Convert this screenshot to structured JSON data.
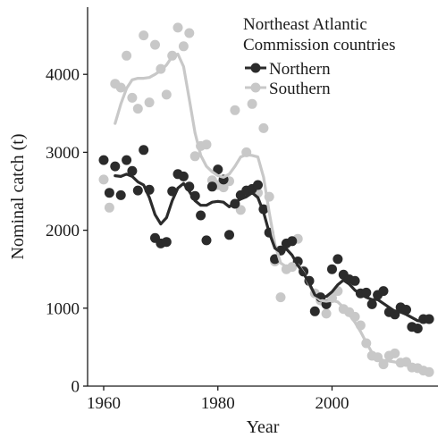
{
  "chart_data": {
    "type": "scatter",
    "xlabel": "Year",
    "ylabel": "Nominal catch (t)",
    "xlim": [
      1958,
      2017
    ],
    "ylim": [
      0,
      4900
    ],
    "x_ticks": [
      1960,
      1980,
      2000
    ],
    "y_ticks": [
      0,
      1000,
      2000,
      3000,
      4000
    ],
    "grid": false,
    "legend": {
      "title_line1": "Northeast Atlantic",
      "title_line2": "Commission countries",
      "placement": "top-right"
    },
    "series": [
      {
        "name": "Northern",
        "color": "#2b2b2b",
        "points": [
          [
            1960,
            2900
          ],
          [
            1961,
            2480
          ],
          [
            1962,
            2820
          ],
          [
            1963,
            2450
          ],
          [
            1964,
            2900
          ],
          [
            1965,
            2760
          ],
          [
            1966,
            2510
          ],
          [
            1967,
            3030
          ],
          [
            1968,
            2520
          ],
          [
            1969,
            1900
          ],
          [
            1970,
            1830
          ],
          [
            1971,
            1850
          ],
          [
            1972,
            2500
          ],
          [
            1973,
            2720
          ],
          [
            1974,
            2690
          ],
          [
            1975,
            2560
          ],
          [
            1976,
            2440
          ],
          [
            1977,
            2190
          ],
          [
            1978,
            1870
          ],
          [
            1979,
            2560
          ],
          [
            1980,
            2780
          ],
          [
            1981,
            2650
          ],
          [
            1982,
            1940
          ],
          [
            1983,
            2340
          ],
          [
            1984,
            2450
          ],
          [
            1985,
            2510
          ],
          [
            1986,
            2530
          ],
          [
            1987,
            2580
          ],
          [
            1988,
            2270
          ],
          [
            1989,
            1970
          ],
          [
            1990,
            1630
          ],
          [
            1991,
            1740
          ],
          [
            1992,
            1830
          ],
          [
            1993,
            1860
          ],
          [
            1994,
            1600
          ],
          [
            1995,
            1470
          ],
          [
            1996,
            1350
          ],
          [
            1997,
            960
          ],
          [
            1998,
            1140
          ],
          [
            1999,
            1050
          ],
          [
            2000,
            1500
          ],
          [
            2001,
            1630
          ],
          [
            2002,
            1430
          ],
          [
            2003,
            1370
          ],
          [
            2004,
            1350
          ],
          [
            2005,
            1190
          ],
          [
            2006,
            1200
          ],
          [
            2007,
            1050
          ],
          [
            2008,
            1170
          ],
          [
            2009,
            1220
          ],
          [
            2010,
            950
          ],
          [
            2011,
            920
          ],
          [
            2012,
            1010
          ],
          [
            2013,
            980
          ],
          [
            2014,
            760
          ],
          [
            2015,
            740
          ],
          [
            2016,
            860
          ],
          [
            2017,
            860
          ]
        ],
        "smooth": [
          [
            1962,
            2700
          ],
          [
            1963,
            2690
          ],
          [
            1964,
            2720
          ],
          [
            1965,
            2690
          ],
          [
            1966,
            2620
          ],
          [
            1967,
            2580
          ],
          [
            1968,
            2420
          ],
          [
            1969,
            2200
          ],
          [
            1970,
            2080
          ],
          [
            1971,
            2160
          ],
          [
            1972,
            2380
          ],
          [
            1973,
            2540
          ],
          [
            1974,
            2600
          ],
          [
            1975,
            2500
          ],
          [
            1976,
            2380
          ],
          [
            1977,
            2320
          ],
          [
            1978,
            2320
          ],
          [
            1979,
            2360
          ],
          [
            1980,
            2370
          ],
          [
            1981,
            2360
          ],
          [
            1982,
            2300
          ],
          [
            1983,
            2360
          ],
          [
            1984,
            2400
          ],
          [
            1985,
            2430
          ],
          [
            1986,
            2480
          ],
          [
            1987,
            2420
          ],
          [
            1988,
            2230
          ],
          [
            1989,
            1970
          ],
          [
            1990,
            1770
          ],
          [
            1991,
            1720
          ],
          [
            1992,
            1760
          ],
          [
            1993,
            1680
          ],
          [
            1994,
            1550
          ],
          [
            1995,
            1450
          ],
          [
            1996,
            1320
          ],
          [
            1997,
            1170
          ],
          [
            1998,
            1130
          ],
          [
            1999,
            1150
          ],
          [
            2000,
            1210
          ],
          [
            2001,
            1300
          ],
          [
            2002,
            1360
          ],
          [
            2003,
            1310
          ],
          [
            2004,
            1230
          ],
          [
            2005,
            1180
          ],
          [
            2006,
            1140
          ],
          [
            2007,
            1110
          ],
          [
            2008,
            1110
          ],
          [
            2009,
            1060
          ],
          [
            2010,
            1010
          ],
          [
            2011,
            960
          ],
          [
            2012,
            950
          ],
          [
            2013,
            920
          ],
          [
            2014,
            880
          ],
          [
            2015,
            840
          ],
          [
            2016,
            830
          ]
        ]
      },
      {
        "name": "Southern",
        "color": "#c8c8c8",
        "points": [
          [
            1960,
            2650
          ],
          [
            1961,
            2290
          ],
          [
            1962,
            3880
          ],
          [
            1963,
            3830
          ],
          [
            1964,
            4240
          ],
          [
            1965,
            3700
          ],
          [
            1966,
            3560
          ],
          [
            1967,
            4500
          ],
          [
            1968,
            3640
          ],
          [
            1969,
            4380
          ],
          [
            1970,
            4070
          ],
          [
            1971,
            3740
          ],
          [
            1972,
            4240
          ],
          [
            1973,
            4600
          ],
          [
            1974,
            4360
          ],
          [
            1975,
            4530
          ],
          [
            1976,
            2950
          ],
          [
            1977,
            3080
          ],
          [
            1978,
            3100
          ],
          [
            1979,
            2640
          ],
          [
            1980,
            2580
          ],
          [
            1981,
            2550
          ],
          [
            1982,
            2630
          ],
          [
            1983,
            3540
          ],
          [
            1984,
            2260
          ],
          [
            1985,
            3000
          ],
          [
            1986,
            3620
          ],
          [
            1987,
            2480
          ],
          [
            1988,
            3310
          ],
          [
            1989,
            2430
          ],
          [
            1990,
            1600
          ],
          [
            1991,
            1140
          ],
          [
            1992,
            1500
          ],
          [
            1993,
            1530
          ],
          [
            1994,
            1890
          ],
          [
            1995,
            1480
          ],
          [
            1996,
            1350
          ],
          [
            1997,
            1190
          ],
          [
            1998,
            1100
          ],
          [
            1999,
            930
          ],
          [
            2000,
            1130
          ],
          [
            2001,
            1220
          ],
          [
            2002,
            990
          ],
          [
            2003,
            950
          ],
          [
            2004,
            890
          ],
          [
            2005,
            780
          ],
          [
            2006,
            550
          ],
          [
            2007,
            390
          ],
          [
            2008,
            370
          ],
          [
            2009,
            280
          ],
          [
            2010,
            390
          ],
          [
            2011,
            420
          ],
          [
            2012,
            300
          ],
          [
            2013,
            310
          ],
          [
            2014,
            240
          ],
          [
            2015,
            230
          ],
          [
            2016,
            200
          ],
          [
            2017,
            180
          ]
        ],
        "smooth": [
          [
            1962,
            3370
          ],
          [
            1963,
            3620
          ],
          [
            1964,
            3820
          ],
          [
            1965,
            3930
          ],
          [
            1966,
            3950
          ],
          [
            1967,
            3950
          ],
          [
            1968,
            3960
          ],
          [
            1969,
            4000
          ],
          [
            1970,
            4050
          ],
          [
            1971,
            4120
          ],
          [
            1972,
            4230
          ],
          [
            1973,
            4260
          ],
          [
            1974,
            4100
          ],
          [
            1975,
            3680
          ],
          [
            1976,
            3250
          ],
          [
            1977,
            2960
          ],
          [
            1978,
            2820
          ],
          [
            1979,
            2750
          ],
          [
            1980,
            2700
          ],
          [
            1981,
            2680
          ],
          [
            1982,
            2720
          ],
          [
            1983,
            2820
          ],
          [
            1984,
            2940
          ],
          [
            1985,
            2970
          ],
          [
            1986,
            2960
          ],
          [
            1987,
            2940
          ],
          [
            1988,
            2680
          ],
          [
            1989,
            2230
          ],
          [
            1990,
            1820
          ],
          [
            1991,
            1580
          ],
          [
            1992,
            1530
          ],
          [
            1993,
            1570
          ],
          [
            1994,
            1560
          ],
          [
            1995,
            1460
          ],
          [
            1996,
            1300
          ],
          [
            1997,
            1160
          ],
          [
            1998,
            1100
          ],
          [
            1999,
            1090
          ],
          [
            2000,
            1100
          ],
          [
            2001,
            1080
          ],
          [
            2002,
            1010
          ],
          [
            2003,
            920
          ],
          [
            2004,
            820
          ],
          [
            2005,
            700
          ],
          [
            2006,
            560
          ],
          [
            2007,
            430
          ],
          [
            2008,
            360
          ],
          [
            2009,
            330
          ],
          [
            2010,
            320
          ],
          [
            2011,
            310
          ],
          [
            2012,
            290
          ],
          [
            2013,
            270
          ],
          [
            2014,
            250
          ],
          [
            2015,
            230
          ],
          [
            2016,
            220
          ]
        ]
      }
    ]
  }
}
